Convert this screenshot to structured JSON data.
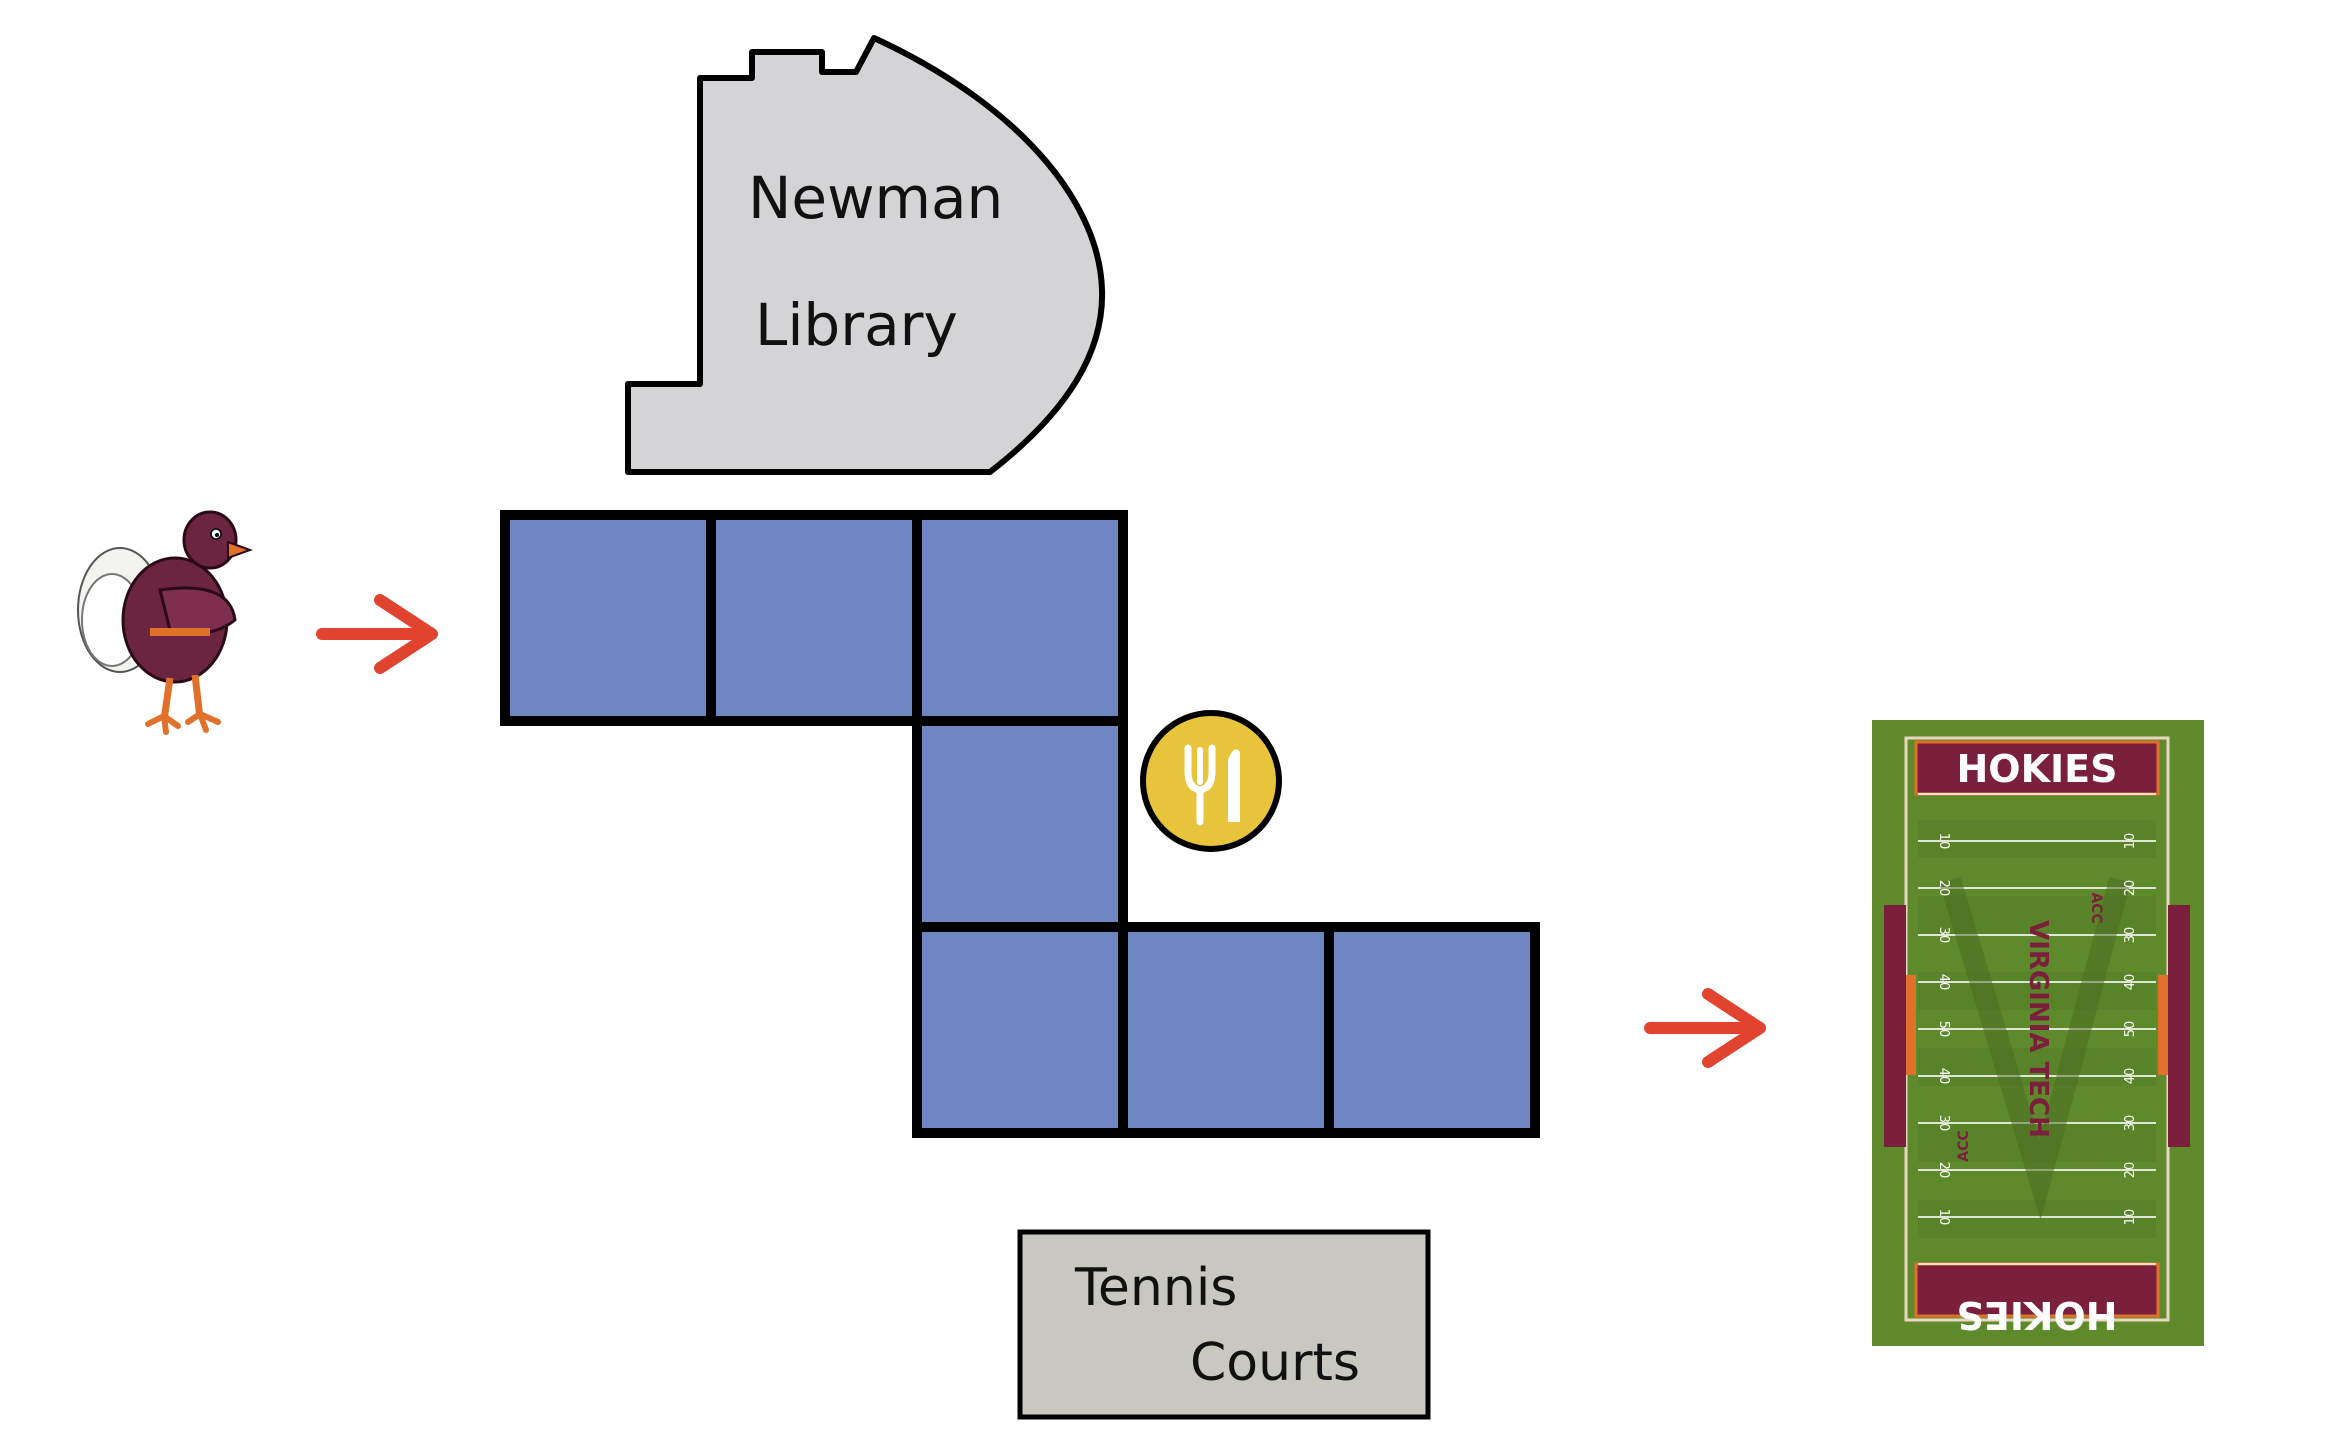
{
  "landmarks": {
    "library": {
      "line1": "Newman",
      "line2": "Library"
    },
    "tennis": {
      "line1": "Tennis",
      "line2": "Courts"
    },
    "stadium": {
      "endzone_top": "HOKIES",
      "endzone_bottom": "HOKIES",
      "midfield": "VIRGINIA TECH",
      "conference": "ACC",
      "yard_numbers": [
        "10",
        "20",
        "30",
        "40",
        "50",
        "40",
        "30",
        "20",
        "10"
      ]
    },
    "dining_icon": "fork-knife-icon"
  },
  "path": {
    "tile_count": 7,
    "tile_color": "#6e86c2"
  },
  "colors": {
    "arrow": "#e0442e",
    "library_fill": "#d4d4d6",
    "tennis_fill": "#c9c8c0",
    "coin": "#e8c33c",
    "turf": "#5f8a2c",
    "maroon": "#7a1f3c",
    "orange": "#e0702a"
  }
}
